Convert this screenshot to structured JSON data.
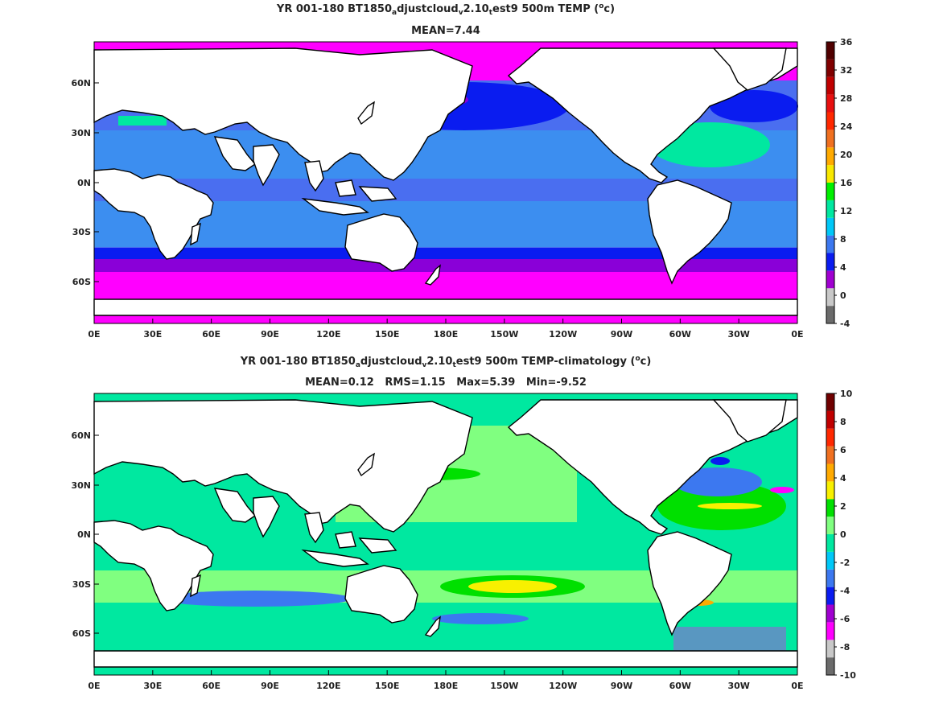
{
  "panels": [
    {
      "title_parts": [
        "YR 001-180 BT1850",
        "a",
        "djustcloud",
        "v",
        "2.10",
        "t",
        "est9 500m TEMP (",
        "o",
        "c)"
      ],
      "stats": "MEAN=7.44",
      "xticks": [
        "0E",
        "30E",
        "60E",
        "90E",
        "120E",
        "150E",
        "180E",
        "150W",
        "120W",
        "90W",
        "60W",
        "30W",
        "0E"
      ],
      "yticks": [
        "60N",
        "30N",
        "0N",
        "30S",
        "60S"
      ],
      "colorbar_labels": [
        "-4",
        "0",
        "4",
        "8",
        "12",
        "16",
        "20",
        "24",
        "28",
        "32",
        "36"
      ],
      "colorbar_colors": [
        "#6b6b6b",
        "#c8c8c8",
        "#a000d0",
        "#0a1cf0",
        "#3c78f0",
        "#00c8f8",
        "#00e8a0",
        "#00f000",
        "#f8e800",
        "#ffaa00",
        "#f07020",
        "#ff2800",
        "#e81010",
        "#c00000",
        "#800000",
        "#500000"
      ],
      "colors": {
        "ocean_base": "#4a6ef0",
        "south_band": "#ff00ff",
        "north_cold": "#8a00d8",
        "subtropic": "#3c8ef0",
        "warm": "#00e8a0"
      }
    },
    {
      "title_parts": [
        "YR 001-180 BT1850",
        "a",
        "djustcloud",
        "v",
        "2.10",
        "t",
        "est9 500m TEMP-climatology (",
        "o",
        "c)"
      ],
      "stats": "MEAN=0.12   RMS=1.15   Max=5.39   Min=-9.52",
      "xticks": [
        "0E",
        "30E",
        "60E",
        "90E",
        "120E",
        "150E",
        "180E",
        "150W",
        "120W",
        "90W",
        "60W",
        "30W",
        "0E"
      ],
      "yticks": [
        "60N",
        "30N",
        "0N",
        "30S",
        "60S"
      ],
      "colorbar_labels": [
        "-10",
        "-8",
        "-6",
        "-4",
        "-2",
        "0",
        "2",
        "4",
        "6",
        "8",
        "10"
      ],
      "colorbar_colors": [
        "#6b6b6b",
        "#c8c8c8",
        "#ff00ff",
        "#a000d0",
        "#0a1cf0",
        "#3c78f0",
        "#00c8f8",
        "#00e8a0",
        "#80ff80",
        "#00e000",
        "#f8f000",
        "#ffaa00",
        "#f07020",
        "#ff2800",
        "#c00000",
        "#700000"
      ],
      "colors": {
        "ocean_base": "#00e8a0",
        "light": "#80ff80",
        "cold": "#3c78f0",
        "warm": "#f8f000"
      }
    }
  ]
}
